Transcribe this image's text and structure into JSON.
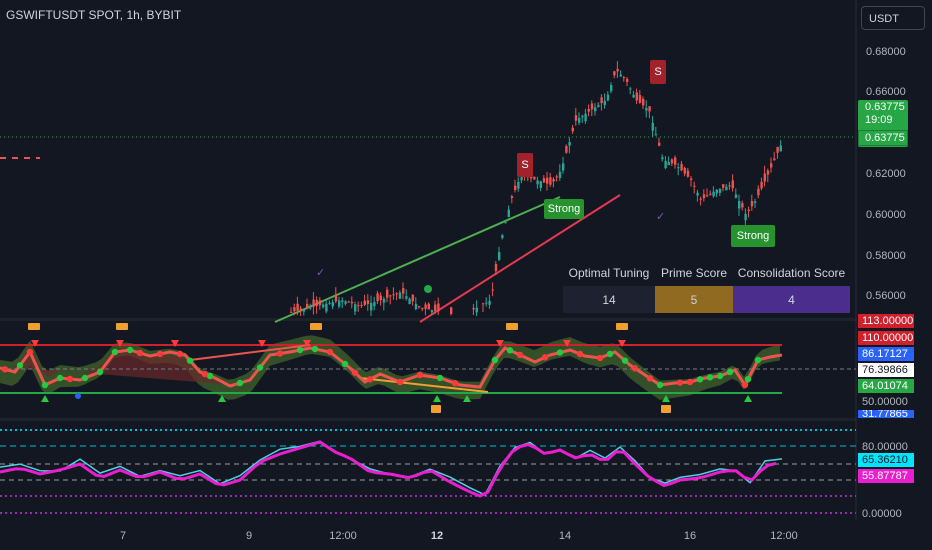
{
  "header": {
    "symbol_title": "GSWIFTUSDT SPOT, 1h, BYBIT",
    "currency_button": "USDT"
  },
  "price_axis": {
    "ticks": [
      "0.68000",
      "0.66000",
      "0.62000",
      "0.60000",
      "0.58000",
      "0.56000"
    ],
    "current_price": "0.63775",
    "countdown": "19:09",
    "last_price": "0.63775"
  },
  "oscillator_axis": {
    "labels": [
      {
        "text": "113.00000",
        "bg": "#d0202c"
      },
      {
        "text": "110.00000",
        "bg": "#d0202c"
      },
      {
        "text": "86.17127",
        "bg": "#2962ff"
      },
      {
        "text": "76.39866",
        "bg": "#ffffff"
      },
      {
        "text": "64.01074",
        "bg": "#26a644"
      },
      {
        "text": "50.00000",
        "bg": "#131722"
      },
      {
        "text": "31.77865",
        "bg": "#2962ff"
      }
    ]
  },
  "rsi_axis": {
    "labels": [
      {
        "text": "80.00000",
        "bg": "#131722"
      },
      {
        "text": "65.36210",
        "bg": "#00e5ff"
      },
      {
        "text": "55.87787",
        "bg": "#e91ecf"
      },
      {
        "text": "0.00000",
        "bg": "#131722"
      }
    ]
  },
  "time_axis": {
    "ticks": [
      "7",
      "9",
      "12:00",
      "12",
      "14",
      "16",
      "12:00"
    ]
  },
  "signals": {
    "sell_label": "S",
    "strong_label": "Strong"
  },
  "score_table": {
    "headers": [
      "Optimal Tuning",
      "Prime Score",
      "Consolidation  Score"
    ],
    "values": [
      "14",
      "5",
      "4"
    ]
  },
  "colors": {
    "background": "#131722",
    "bull": "#26a69a",
    "bear": "#ef5350",
    "prime_gold": "#8f6a20",
    "consolidation_purple": "#4a2d8c",
    "strong_green": "#26932f",
    "sell_red": "#a3212b"
  }
}
